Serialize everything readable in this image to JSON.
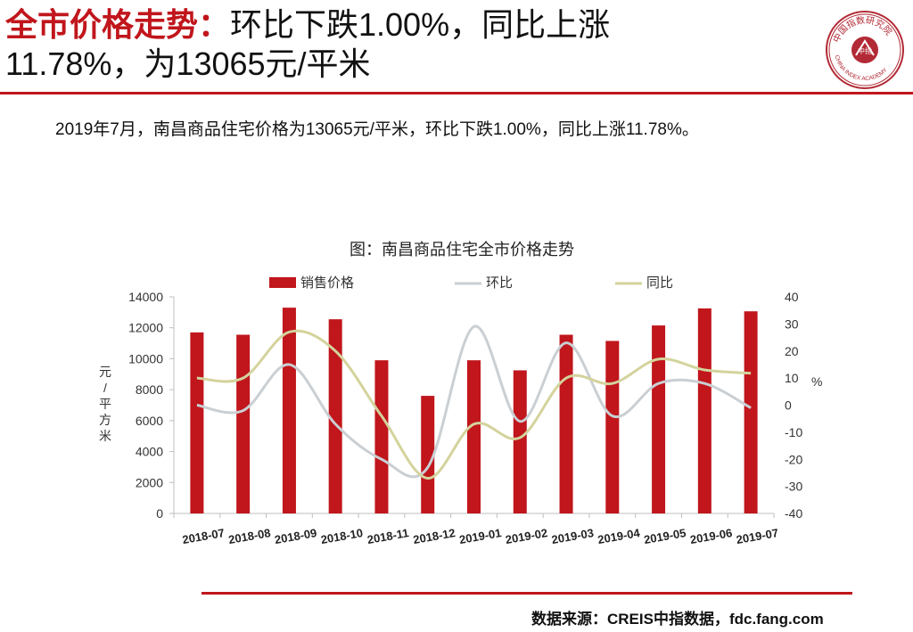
{
  "header": {
    "title_highlight": "全市价格走势：",
    "title_rest_line1": "环比下跌1.00%，同比上涨",
    "title_line2": "11.78%，为13065元/平米"
  },
  "logo": {
    "name_cn": "中国指数研究院",
    "name_en": "CHINA INDEX ACADEMY",
    "inner": "中指"
  },
  "summary": "2019年7月，南昌商品住宅价格为13065元/平米，环比下跌1.00%，同比上涨11.78%。",
  "chart_data": {
    "type": "bar+line",
    "title": "图：南昌商品住宅全市价格走势",
    "categories": [
      "2018-07",
      "2018-08",
      "2018-09",
      "2018-10",
      "2018-11",
      "2018-12",
      "2019-01",
      "2019-02",
      "2019-03",
      "2019-04",
      "2019-05",
      "2019-06",
      "2019-07"
    ],
    "series": [
      {
        "name": "销售价格",
        "type": "bar",
        "axis": "left",
        "color": "#c0161c",
        "values": [
          11700,
          11550,
          13300,
          12550,
          9900,
          7600,
          9900,
          9250,
          11550,
          11150,
          12150,
          13250,
          13065
        ]
      },
      {
        "name": "环比",
        "type": "line",
        "axis": "right",
        "color": "#c9cfd3",
        "values": [
          0,
          -2,
          15,
          -7,
          -20,
          -23,
          29,
          -6,
          23,
          -4,
          8,
          8,
          -1.0
        ]
      },
      {
        "name": "同比",
        "type": "line",
        "axis": "right",
        "color": "#d3d39c",
        "values": [
          10,
          10,
          27,
          20,
          -4,
          -27,
          -7,
          -12,
          10,
          8,
          17,
          13,
          11.78
        ]
      }
    ],
    "ylabel_left": "元/平方米",
    "ylabel_right": "%",
    "ylim_left": [
      0,
      14000
    ],
    "yticks_left": [
      0,
      2000,
      4000,
      6000,
      8000,
      10000,
      12000,
      14000
    ],
    "ylim_right": [
      -40,
      40
    ],
    "yticks_right": [
      -40,
      -30,
      -20,
      -10,
      0,
      10,
      20,
      30,
      40
    ],
    "grid": false,
    "legend": "top"
  },
  "source": "数据来源：CREIS中指数据，fdc.fang.com"
}
